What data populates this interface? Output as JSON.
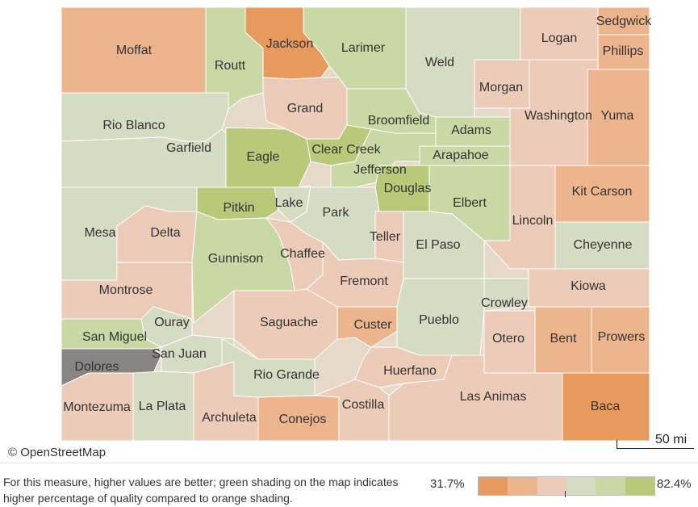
{
  "map": {
    "attribution": "© OpenStreetMap",
    "scale_label": "50 mi",
    "colors": {
      "c1": "#e89a5e",
      "c2": "#ecb58e",
      "c3": "#eccbb8",
      "c4": "#d5dcc3",
      "c5": "#c9d8a4",
      "c6": "#b8c97a",
      "dolores": "#8a8585"
    },
    "counties": [
      "Moffat",
      "Jackson",
      "Larimer",
      "Logan",
      "Sedgwick",
      "Phillips",
      "Routt",
      "Weld",
      "Grand",
      "Morgan",
      "Washington",
      "Yuma",
      "Rio Blanco",
      "Broomfield",
      "Adams",
      "Garfield",
      "Eagle",
      "Clear Creek",
      "Arapahoe",
      "Jefferson",
      "Douglas",
      "Kit Carson",
      "Pitkin",
      "Lake",
      "Park",
      "Elbert",
      "Lincoln",
      "Mesa",
      "Delta",
      "Teller",
      "El Paso",
      "Cheyenne",
      "Gunnison",
      "Chaffee",
      "Fremont",
      "Kiowa",
      "Montrose",
      "Crowley",
      "Ouray",
      "Saguache",
      "Custer",
      "Pueblo",
      "San Miguel",
      "Otero",
      "Bent",
      "Prowers",
      "San Juan",
      "Dolores",
      "Huerfano",
      "Rio Grande",
      "Las Animas",
      "Montezuma",
      "La Plata",
      "Costilla",
      "Baca",
      "Archuleta",
      "Conejos"
    ]
  },
  "legend": {
    "description": "For this measure, higher values are better; green shading on the map indicates higher percentage of quality compared to orange shading.",
    "min_label": "31.7%",
    "max_label": "82.4%",
    "bins": [
      "#e89a5e",
      "#ecb58e",
      "#eccbb8",
      "#d5dcc3",
      "#c9d8a4",
      "#b8c97a"
    ]
  }
}
